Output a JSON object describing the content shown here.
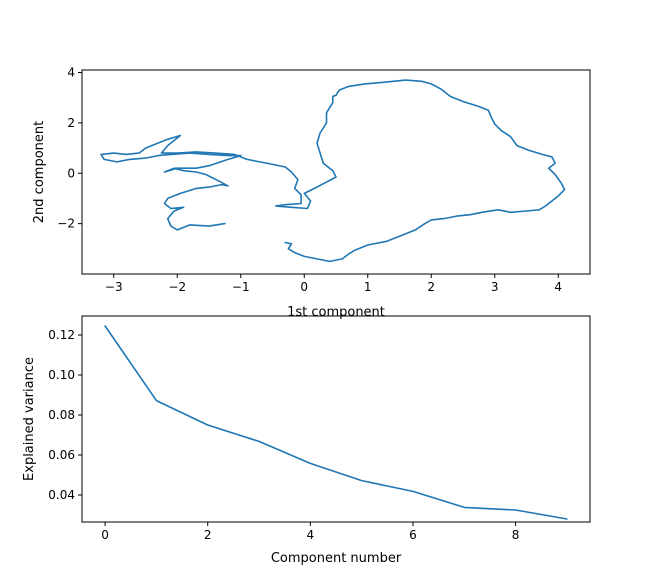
{
  "colors": {
    "line": "#1f77b4",
    "axes": "#000000",
    "background": "#ffffff"
  },
  "chart_data": [
    {
      "type": "line",
      "title": "",
      "xlabel": "1st component",
      "ylabel": "2nd component",
      "xlim": [
        -3.5,
        4.5
      ],
      "ylim": [
        -4.0,
        4.1
      ],
      "xticks": [
        -3,
        -2,
        -1,
        0,
        1,
        2,
        3,
        4
      ],
      "xtick_labels": [
        "−3",
        "−2",
        "−1",
        "0",
        "1",
        "2",
        "3",
        "4"
      ],
      "yticks": [
        -2,
        0,
        2,
        4
      ],
      "ytick_labels": [
        "−2",
        "0",
        "2",
        "4"
      ],
      "grid": false,
      "legend": "none",
      "series": [
        {
          "points": [
            [
              -1.25,
              -2.0
            ],
            [
              -1.5,
              -2.1
            ],
            [
              -1.8,
              -2.05
            ],
            [
              -2.0,
              -2.25
            ],
            [
              -2.1,
              -2.1
            ],
            [
              -2.15,
              -1.8
            ],
            [
              -2.05,
              -1.5
            ],
            [
              -1.9,
              -1.35
            ],
            [
              -2.1,
              -1.4
            ],
            [
              -2.2,
              -1.2
            ],
            [
              -2.15,
              -1.0
            ],
            [
              -1.95,
              -0.8
            ],
            [
              -1.7,
              -0.6
            ],
            [
              -1.5,
              -0.55
            ],
            [
              -1.3,
              -0.45
            ],
            [
              -1.2,
              -0.5
            ],
            [
              -1.35,
              -0.3
            ],
            [
              -1.55,
              -0.05
            ],
            [
              -1.7,
              0.05
            ],
            [
              -1.9,
              0.1
            ],
            [
              -2.05,
              0.2
            ],
            [
              -2.2,
              0.05
            ],
            [
              -2.0,
              0.2
            ],
            [
              -1.7,
              0.2
            ],
            [
              -1.5,
              0.3
            ],
            [
              -1.2,
              0.55
            ],
            [
              -1.0,
              0.7
            ],
            [
              -1.2,
              0.7
            ],
            [
              -1.5,
              0.75
            ],
            [
              -1.8,
              0.8
            ],
            [
              -2.1,
              0.75
            ],
            [
              -2.3,
              0.7
            ],
            [
              -2.5,
              0.6
            ],
            [
              -2.75,
              0.55
            ],
            [
              -2.95,
              0.45
            ],
            [
              -3.15,
              0.55
            ],
            [
              -3.2,
              0.75
            ],
            [
              -3.0,
              0.8
            ],
            [
              -2.8,
              0.75
            ],
            [
              -2.6,
              0.8
            ],
            [
              -2.5,
              1.0
            ],
            [
              -2.3,
              1.2
            ],
            [
              -2.15,
              1.35
            ],
            [
              -1.95,
              1.5
            ],
            [
              -2.05,
              1.3
            ],
            [
              -2.15,
              1.1
            ],
            [
              -2.25,
              0.8
            ],
            [
              -2.0,
              0.8
            ],
            [
              -1.7,
              0.85
            ],
            [
              -1.4,
              0.8
            ],
            [
              -1.1,
              0.75
            ],
            [
              -0.9,
              0.55
            ],
            [
              -0.7,
              0.45
            ],
            [
              -0.5,
              0.35
            ],
            [
              -0.3,
              0.25
            ],
            [
              -0.2,
              0.05
            ],
            [
              -0.1,
              -0.25
            ],
            [
              -0.15,
              -0.6
            ],
            [
              -0.05,
              -0.85
            ],
            [
              -0.05,
              -1.2
            ],
            [
              -0.3,
              -1.25
            ],
            [
              -0.45,
              -1.3
            ],
            [
              -0.2,
              -1.35
            ],
            [
              0.05,
              -1.4
            ],
            [
              0.1,
              -1.1
            ],
            [
              0.0,
              -0.8
            ],
            [
              0.2,
              -0.55
            ],
            [
              0.35,
              -0.35
            ],
            [
              0.5,
              -0.15
            ],
            [
              0.45,
              0.1
            ],
            [
              0.3,
              0.4
            ],
            [
              0.25,
              0.8
            ],
            [
              0.2,
              1.2
            ],
            [
              0.25,
              1.6
            ],
            [
              0.35,
              2.0
            ],
            [
              0.35,
              2.4
            ],
            [
              0.45,
              2.8
            ],
            [
              0.45,
              3.05
            ],
            [
              0.5,
              3.1
            ],
            [
              0.55,
              3.3
            ],
            [
              0.7,
              3.45
            ],
            [
              0.95,
              3.55
            ],
            [
              1.2,
              3.6
            ],
            [
              1.4,
              3.65
            ],
            [
              1.6,
              3.7
            ],
            [
              1.85,
              3.65
            ],
            [
              2.0,
              3.55
            ],
            [
              2.15,
              3.35
            ],
            [
              2.3,
              3.05
            ],
            [
              2.5,
              2.85
            ],
            [
              2.75,
              2.65
            ],
            [
              2.9,
              2.5
            ],
            [
              2.95,
              2.2
            ],
            [
              3.0,
              1.95
            ],
            [
              3.1,
              1.7
            ],
            [
              3.25,
              1.45
            ],
            [
              3.35,
              1.1
            ],
            [
              3.55,
              0.9
            ],
            [
              3.75,
              0.75
            ],
            [
              3.9,
              0.65
            ],
            [
              3.95,
              0.4
            ],
            [
              3.85,
              0.2
            ],
            [
              3.95,
              -0.05
            ],
            [
              4.05,
              -0.4
            ],
            [
              4.1,
              -0.65
            ],
            [
              4.0,
              -0.9
            ],
            [
              3.9,
              -1.1
            ],
            [
              3.8,
              -1.3
            ],
            [
              3.7,
              -1.45
            ],
            [
              3.5,
              -1.5
            ],
            [
              3.25,
              -1.55
            ],
            [
              3.05,
              -1.45
            ],
            [
              2.8,
              -1.55
            ],
            [
              2.6,
              -1.65
            ],
            [
              2.4,
              -1.7
            ],
            [
              2.2,
              -1.8
            ],
            [
              2.0,
              -1.85
            ],
            [
              1.9,
              -2.0
            ],
            [
              1.75,
              -2.25
            ],
            [
              1.5,
              -2.5
            ],
            [
              1.3,
              -2.7
            ],
            [
              1.0,
              -2.85
            ],
            [
              0.8,
              -3.05
            ],
            [
              0.7,
              -3.2
            ],
            [
              0.6,
              -3.4
            ],
            [
              0.4,
              -3.5
            ],
            [
              0.2,
              -3.4
            ],
            [
              0.0,
              -3.3
            ],
            [
              -0.15,
              -3.15
            ],
            [
              -0.25,
              -3.0
            ],
            [
              -0.2,
              -2.8
            ],
            [
              -0.3,
              -2.75
            ]
          ]
        }
      ]
    },
    {
      "type": "line",
      "title": "",
      "xlabel": "Component number",
      "ylabel": "Explained variance",
      "xlim": [
        -0.45,
        9.45
      ],
      "ylim": [
        0.0265,
        0.1295
      ],
      "xticks": [
        0,
        2,
        4,
        6,
        8
      ],
      "xtick_labels": [
        "0",
        "2",
        "4",
        "6",
        "8"
      ],
      "yticks": [
        0.04,
        0.06,
        0.08,
        0.1,
        0.12
      ],
      "ytick_labels": [
        "0.04",
        "0.06",
        "0.08",
        "0.10",
        "0.12"
      ],
      "grid": false,
      "legend": "none",
      "series": [
        {
          "x": [
            0,
            1,
            2,
            3,
            4,
            5,
            6,
            7,
            8,
            9
          ],
          "values": [
            0.1245,
            0.0872,
            0.075,
            0.0668,
            0.0558,
            0.0472,
            0.0418,
            0.0338,
            0.0325,
            0.028
          ]
        }
      ]
    }
  ]
}
